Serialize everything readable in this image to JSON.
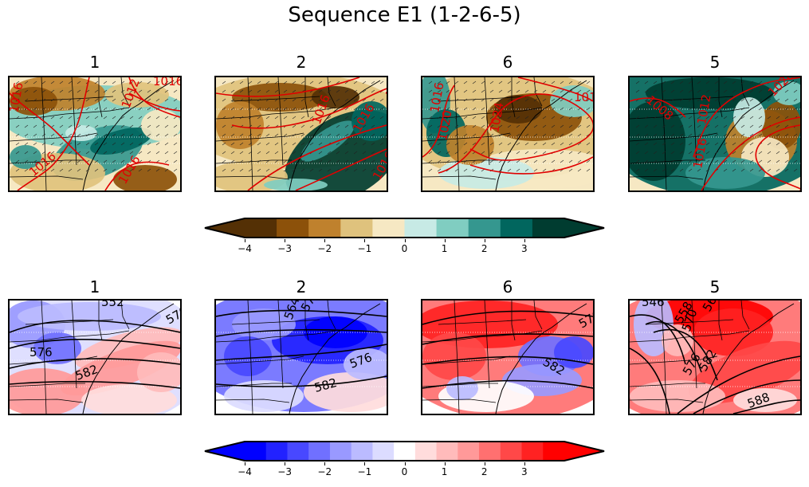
{
  "title": "Sequence E1 (1-2-6-5)",
  "rows": [
    {
      "panels": [
        {
          "label": "1",
          "contours": [
            "1016",
            "1016",
            "1016",
            "1012",
            "1016"
          ]
        },
        {
          "label": "2",
          "contours": [
            "1016",
            "1016",
            "1016"
          ]
        },
        {
          "label": "6",
          "contours": [
            "1016",
            "1020",
            "1024",
            "1016"
          ]
        },
        {
          "label": "5",
          "contours": [
            "1008",
            "1012",
            "1016",
            "1020"
          ]
        }
      ],
      "contour_color": "#e00000",
      "colormap": [
        "#543005",
        "#8c510a",
        "#bf812d",
        "#dfc27d",
        "#f6e8c3",
        "#c7eae5",
        "#80cdc1",
        "#35978f",
        "#01665e",
        "#003c30"
      ]
    },
    {
      "panels": [
        {
          "label": "1",
          "contours": [
            "552",
            "570",
            "576",
            "582"
          ]
        },
        {
          "label": "2",
          "contours": [
            "564",
            "570",
            "576",
            "582"
          ]
        },
        {
          "label": "6",
          "contours": [
            "576",
            "582"
          ]
        },
        {
          "label": "5",
          "contours": [
            "546",
            "558",
            "564",
            "570",
            "576",
            "582",
            "588"
          ]
        }
      ],
      "contour_color": "#000000",
      "colormap": [
        "#0000ff",
        "#2222ff",
        "#4848ff",
        "#7070ff",
        "#9999ff",
        "#bbbbff",
        "#dcdcff",
        "#ffffff",
        "#ffdcdc",
        "#ffbbbb",
        "#ff9999",
        "#ff7070",
        "#ff4848",
        "#ff2222",
        "#ff0000"
      ]
    }
  ],
  "colorbar_ticks": [
    "−4",
    "−3",
    "−2",
    "−1",
    "0",
    "1",
    "2",
    "3"
  ],
  "colorbar_tick_values": [
    -4,
    -3,
    -2,
    -1,
    0,
    1,
    2,
    3
  ],
  "colorbar_range": [
    -4,
    4
  ]
}
